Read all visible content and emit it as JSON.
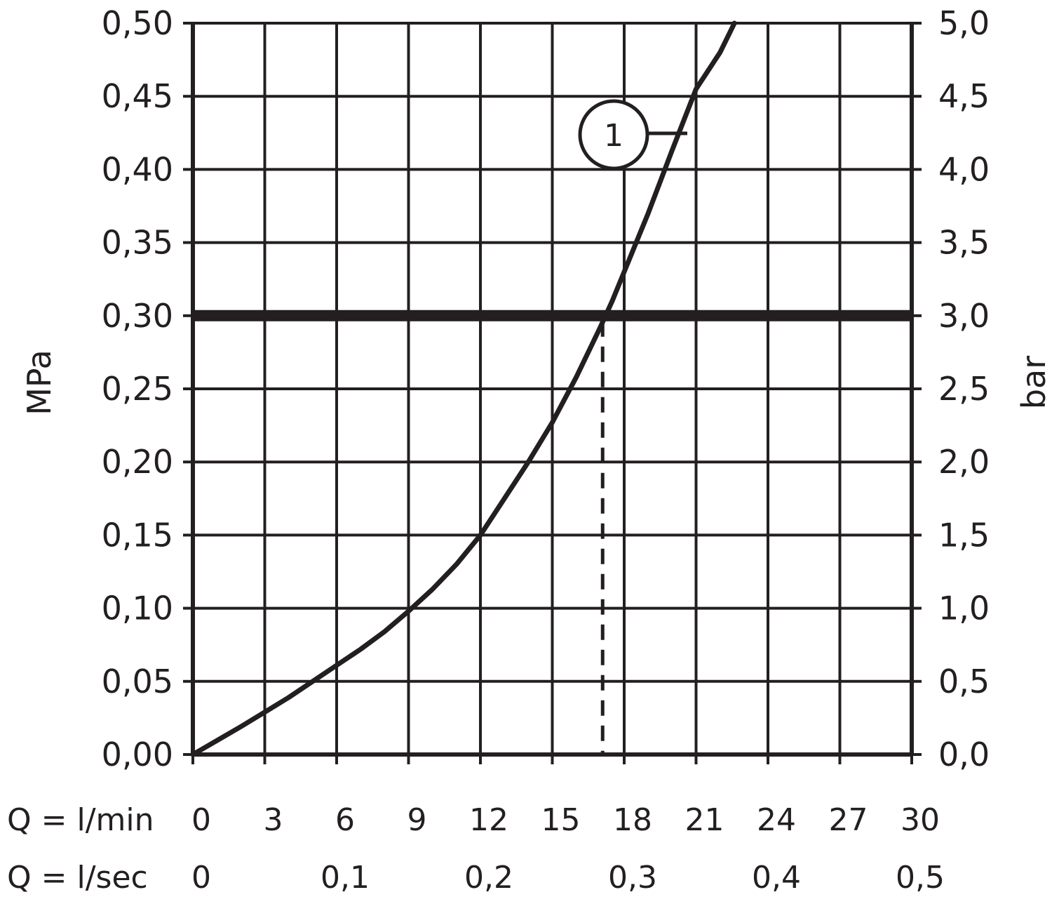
{
  "colors": {
    "ink": "#231f20",
    "background": "#ffffff"
  },
  "chart_data": {
    "type": "line",
    "title": "",
    "ylabel_left": "MPa",
    "ylabel_right": "bar",
    "xlim": [
      0,
      30
    ],
    "ylim": [
      0,
      0.5
    ],
    "grid": true,
    "y_left_ticks": [
      "0,00",
      "0,05",
      "0,10",
      "0,15",
      "0,20",
      "0,25",
      "0,30",
      "0,35",
      "0,40",
      "0,45",
      "0,50"
    ],
    "y_right_ticks": [
      "0,0",
      "0,5",
      "1,0",
      "1,5",
      "2,0",
      "2,5",
      "3,0",
      "3,5",
      "4,0",
      "4,5",
      "5,0"
    ],
    "x_rows": [
      {
        "label": "Q = l/min",
        "ticks": [
          {
            "x": 0,
            "text": "0"
          },
          {
            "x": 3,
            "text": "3"
          },
          {
            "x": 6,
            "text": "6"
          },
          {
            "x": 9,
            "text": "9"
          },
          {
            "x": 12,
            "text": "12"
          },
          {
            "x": 15,
            "text": "15"
          },
          {
            "x": 18,
            "text": "18"
          },
          {
            "x": 21,
            "text": "21"
          },
          {
            "x": 24,
            "text": "24"
          },
          {
            "x": 27,
            "text": "27"
          },
          {
            "x": 30,
            "text": "30"
          }
        ]
      },
      {
        "label": "Q = l/sec",
        "ticks": [
          {
            "x": 0,
            "text": "0"
          },
          {
            "x": 6,
            "text": "0,1"
          },
          {
            "x": 12,
            "text": "0,2"
          },
          {
            "x": 18,
            "text": "0,3"
          },
          {
            "x": 24,
            "text": "0,4"
          },
          {
            "x": 30,
            "text": "0,5"
          }
        ]
      }
    ],
    "series": [
      {
        "label": "1",
        "x": [
          0,
          1,
          2,
          3,
          4,
          5,
          6,
          7,
          8,
          9,
          10,
          11,
          12,
          13,
          14,
          15,
          16,
          17,
          17.5,
          18,
          19,
          20,
          21,
          22,
          22.6
        ],
        "y": [
          0.0,
          0.0095,
          0.019,
          0.029,
          0.039,
          0.05,
          0.061,
          0.072,
          0.084,
          0.098,
          0.113,
          0.13,
          0.15,
          0.175,
          0.2,
          0.227,
          0.258,
          0.292,
          0.31,
          0.33,
          0.37,
          0.413,
          0.455,
          0.48,
          0.5
        ]
      }
    ],
    "reference_line": {
      "y": 0.3,
      "style": "bold"
    },
    "reference_drop": {
      "x": 17.1,
      "y": 0.3,
      "style": "dashed"
    }
  }
}
